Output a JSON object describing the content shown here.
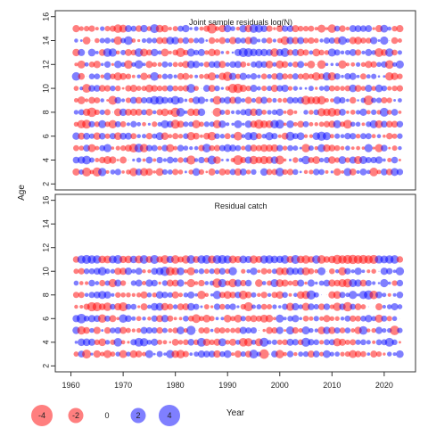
{
  "chart_data": {
    "type": "scatter",
    "subtype": "bubble-residual",
    "ylabel": "Age",
    "xlabel": "Year",
    "xlim": [
      1957,
      2026
    ],
    "x_ticks": [
      1960,
      1970,
      1980,
      1990,
      2000,
      2010,
      2020
    ],
    "ylim": [
      1.5,
      16.5
    ],
    "y_ticks": [
      2,
      4,
      6,
      8,
      10,
      12,
      14,
      16
    ],
    "colors": {
      "positive": "#0000ff",
      "negative": "#ff0000",
      "bubble_opacity": 0.5
    },
    "panels": [
      {
        "title": "Joint sample residuals log(N)",
        "years": [
          1961,
          2023
        ],
        "ages": [
          3,
          15
        ],
        "seed": 7,
        "max_abs_residual": 4.5
      },
      {
        "title": "Residual catch",
        "years": [
          1961,
          2023
        ],
        "ages": [
          3,
          11
        ],
        "seed": 19,
        "max_abs_residual": 4.5,
        "note": "plus-group age 11 with large negative residuals around 2011-2018"
      }
    ],
    "legend": {
      "entries": [
        {
          "value": -4,
          "label": "-4"
        },
        {
          "value": -2,
          "label": "-2"
        },
        {
          "value": 0,
          "label": "0"
        },
        {
          "value": 2,
          "label": "2"
        },
        {
          "value": 4,
          "label": "4"
        }
      ]
    }
  }
}
